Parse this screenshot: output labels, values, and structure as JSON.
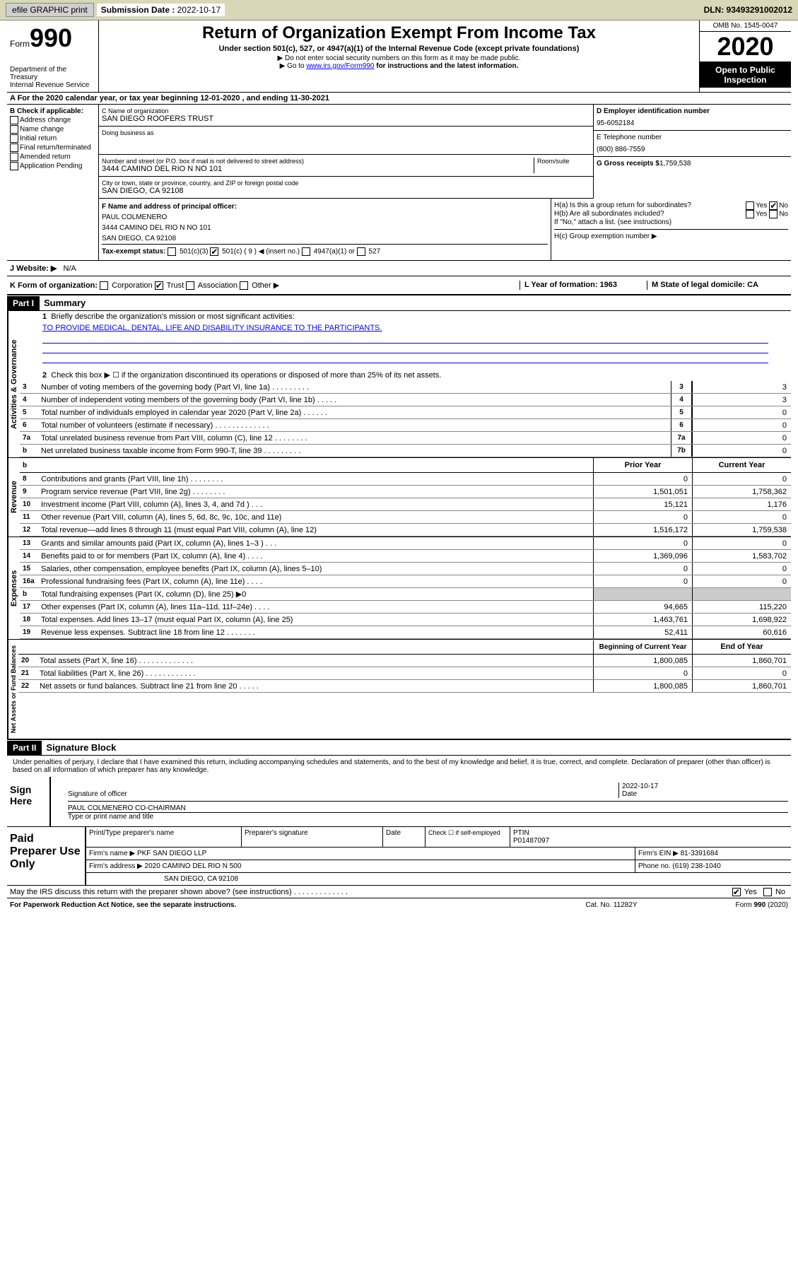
{
  "topbar": {
    "efile": "efile GRAPHIC print",
    "sub_date_label": "Submission Date :",
    "sub_date": "2022-10-17",
    "dln": "DLN: 93493291002012"
  },
  "header": {
    "form_label": "Form",
    "form_num": "990",
    "dept1": "Department of the Treasury",
    "dept2": "Internal Revenue Service",
    "title": "Return of Organization Exempt From Income Tax",
    "sub1": "Under section 501(c), 527, or 4947(a)(1) of the Internal Revenue Code (except private foundations)",
    "sub2": "▶ Do not enter social security numbers on this form as it may be made public.",
    "sub3_pre": "▶ Go to ",
    "sub3_link": "www.irs.gov/Form990",
    "sub3_post": " for instructions and the latest information.",
    "omb": "OMB No. 1545-0047",
    "year": "2020",
    "pub": "Open to Public Inspection"
  },
  "tax_year": {
    "line": "A For the 2020 calendar year, or tax year beginning 12-01-2020    , and ending 11-30-2021"
  },
  "boxB": {
    "title": "B Check if applicable:",
    "opts": [
      "Address change",
      "Name change",
      "Initial return",
      "Final return/terminated",
      "Amended return",
      "Application Pending"
    ]
  },
  "boxC": {
    "name_label": "C Name of organization",
    "name": "SAN DIEGO ROOFERS TRUST",
    "dba_label": "Doing business as",
    "addr_label": "Number and street (or P.O. box if mail is not delivered to street address)",
    "addr": "3444 CAMINO DEL RIO N NO 101",
    "room_label": "Room/suite",
    "city_label": "City or town, state or province, country, and ZIP or foreign postal code",
    "city": "SAN DIEGO, CA  92108"
  },
  "boxD": {
    "label": "D Employer identification number",
    "val": "95-6052184"
  },
  "boxE": {
    "label": "E Telephone number",
    "val": "(800) 886-7559"
  },
  "boxG": {
    "label": "G Gross receipts $",
    "val": "1,759,538"
  },
  "boxF": {
    "label": "F Name and address of principal officer:",
    "name": "PAUL COLMENERO",
    "addr1": "3444 CAMINO DEL RIO N NO 101",
    "addr2": "SAN DIEGO, CA  92108"
  },
  "boxH": {
    "a": "H(a)  Is this a group return for subordinates?",
    "b": "H(b)  Are all subordinates included?",
    "b_note": "If \"No,\" attach a list. (see instructions)",
    "c": "H(c)  Group exemption number ▶"
  },
  "taxexempt": {
    "label": "Tax-exempt status:",
    "opt1": "501(c)(3)",
    "opt2": "501(c) ( 9 ) ◀ (insert no.)",
    "opt3": "4947(a)(1) or",
    "opt4": "527"
  },
  "website": {
    "label": "J   Website: ▶",
    "val": "N/A"
  },
  "boxK": {
    "label": "K Form of organization:",
    "opts": [
      "Corporation",
      "Trust",
      "Association",
      "Other ▶"
    ],
    "L": "L Year of formation: 1963",
    "M": "M State of legal domicile: CA"
  },
  "part1": {
    "hdr": "Part I",
    "title": "Summary",
    "l1": "Briefly describe the organization's mission or most significant activities:",
    "mission": "TO PROVIDE MEDICAL, DENTAL, LIFE AND DISABILITY INSURANCE TO THE PARTICIPANTS.",
    "l2": "Check this box ▶ ☐  if the organization discontinued its operations or disposed of more than 25% of its net assets.",
    "vert_gov": "Activities & Governance",
    "vert_rev": "Revenue",
    "vert_exp": "Expenses",
    "vert_net": "Net Assets or Fund Balances",
    "lines_gov": [
      {
        "n": "3",
        "t": "Number of voting members of the governing body (Part VI, line 1a)  .    .    .    .    .    .    .    .    .",
        "b": "3",
        "v": "3"
      },
      {
        "n": "4",
        "t": "Number of independent voting members of the governing body (Part VI, line 1b)  .    .    .    .    .",
        "b": "4",
        "v": "3"
      },
      {
        "n": "5",
        "t": "Total number of individuals employed in calendar year 2020 (Part V, line 2a)  .    .    .    .    .    .",
        "b": "5",
        "v": "0"
      },
      {
        "n": "6",
        "t": "Total number of volunteers (estimate if necessary)   .    .    .    .    .    .    .    .    .    .    .    .    .",
        "b": "6",
        "v": "0"
      },
      {
        "n": "7a",
        "t": "Total unrelated business revenue from Part VIII, column (C), line 12   .    .    .    .    .    .    .    .",
        "b": "7a",
        "v": "0"
      },
      {
        "n": "b",
        "t": "Net unrelated business taxable income from Form 990-T, line 39   .    .    .    .    .    .    .    .    .",
        "b": "7b",
        "v": "0"
      }
    ],
    "col_prior": "Prior Year",
    "col_curr": "Current Year",
    "lines_rev": [
      {
        "n": "8",
        "t": "Contributions and grants (Part VIII, line 1h)    .    .    .    .    .    .    .    .",
        "p": "0",
        "c": "0"
      },
      {
        "n": "9",
        "t": "Program service revenue (Part VIII, line 2g)    .    .    .    .    .    .    .    .",
        "p": "1,501,051",
        "c": "1,758,362"
      },
      {
        "n": "10",
        "t": "Investment income (Part VIII, column (A), lines 3, 4, and 7d )    .    .    .",
        "p": "15,121",
        "c": "1,176"
      },
      {
        "n": "11",
        "t": "Other revenue (Part VIII, column (A), lines 5, 6d, 8c, 9c, 10c, and 11e)",
        "p": "0",
        "c": "0"
      },
      {
        "n": "12",
        "t": "Total revenue—add lines 8 through 11 (must equal Part VIII, column (A), line 12)",
        "p": "1,516,172",
        "c": "1,759,538"
      }
    ],
    "lines_exp": [
      {
        "n": "13",
        "t": "Grants and similar amounts paid (Part IX, column (A), lines 1–3 )   .    .    .",
        "p": "0",
        "c": "0"
      },
      {
        "n": "14",
        "t": "Benefits paid to or for members (Part IX, column (A), line 4)    .    .    .    .",
        "p": "1,369,096",
        "c": "1,583,702"
      },
      {
        "n": "15",
        "t": "Salaries, other compensation, employee benefits (Part IX, column (A), lines 5–10)",
        "p": "0",
        "c": "0"
      },
      {
        "n": "16a",
        "t": "Professional fundraising fees (Part IX, column (A), line 11e)    .    .    .    .",
        "p": "0",
        "c": "0"
      },
      {
        "n": "b",
        "t": "Total fundraising expenses (Part IX, column (D), line 25) ▶0",
        "p": "",
        "c": "",
        "gray": true
      },
      {
        "n": "17",
        "t": "Other expenses (Part IX, column (A), lines 11a–11d, 11f–24e)   .    .    .    .",
        "p": "94,665",
        "c": "115,220"
      },
      {
        "n": "18",
        "t": "Total expenses. Add lines 13–17 (must equal Part IX, column (A), line 25)",
        "p": "1,463,761",
        "c": "1,698,922"
      },
      {
        "n": "19",
        "t": "Revenue less expenses. Subtract line 18 from line 12   .    .    .    .    .    .    .",
        "p": "52,411",
        "c": "60,616"
      }
    ],
    "col_begin": "Beginning of Current Year",
    "col_end": "End of Year",
    "lines_net": [
      {
        "n": "20",
        "t": "Total assets (Part X, line 16)   .    .    .    .    .    .    .    .    .    .    .    .    .",
        "p": "1,800,085",
        "c": "1,860,701"
      },
      {
        "n": "21",
        "t": "Total liabilities (Part X, line 26)   .    .    .    .    .    .    .    .    .    .    .    .",
        "p": "0",
        "c": "0"
      },
      {
        "n": "22",
        "t": "Net assets or fund balances. Subtract line 21 from line 20   .    .    .    .    .",
        "p": "1,800,085",
        "c": "1,860,701"
      }
    ]
  },
  "part2": {
    "hdr": "Part II",
    "title": "Signature Block",
    "penalty": "Under penalties of perjury, I declare that I have examined this return, including accompanying schedules and statements, and to the best of my knowledge and belief, it is true, correct, and complete. Declaration of preparer (other than officer) is based on all information of which preparer has any knowledge."
  },
  "sign": {
    "label": "Sign Here",
    "sig_of": "Signature of officer",
    "date": "2022-10-17",
    "date_label": "Date",
    "name": "PAUL COLMENERO  CO-CHAIRMAN",
    "name_label": "Type or print name and title"
  },
  "prep": {
    "label": "Paid Preparer Use Only",
    "r1c1": "Print/Type preparer's name",
    "r1c2": "Preparer's signature",
    "r1c3": "Date",
    "r1c4a": "Check ☐ if self-employed",
    "r1c5a": "PTIN",
    "r1c5b": "P01487097",
    "r2a": "Firm's name    ▶",
    "r2b": "PKF SAN DIEGO LLP",
    "r2c": "Firm's EIN ▶",
    "r2d": "81-3391684",
    "r3a": "Firm's address ▶",
    "r3b": "2020 CAMINO DEL RIO N 500",
    "r3c": "Phone no.",
    "r3d": "(619) 238-1040",
    "r4": "SAN DIEGO, CA  92108"
  },
  "discuss": {
    "txt": "May the IRS discuss this return with the preparer shown above? (see instructions)   .    .    .    .    .    .    .    .    .    .    .    .    .",
    "yes": "Yes",
    "no": "No"
  },
  "footer": {
    "l": "For Paperwork Reduction Act Notice, see the separate instructions.",
    "m": "Cat. No. 11282Y",
    "r": "Form 990 (2020)"
  },
  "yes": "Yes",
  "no": "No"
}
